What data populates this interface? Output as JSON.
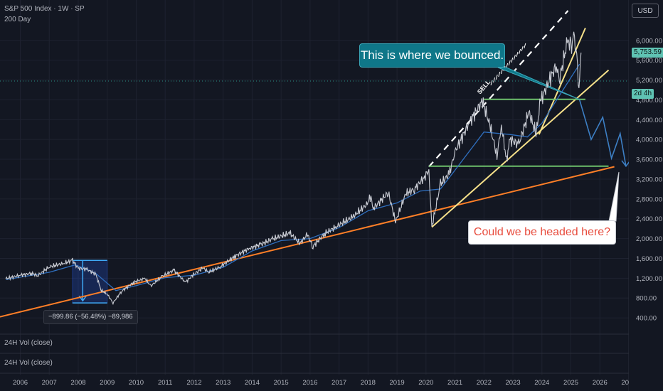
{
  "header": {
    "symbol_line": "S&P 500 Index · 1W · SP",
    "indicator_label": "200 Day"
  },
  "currency_button": "USD",
  "price_tags": {
    "current_price": "5,753.59",
    "countdown": "2d 4h"
  },
  "volume_panes": [
    "24H Vol (close)",
    "24H Vol (close)"
  ],
  "annotations": {
    "bounce_callout": "This is where we bounced.",
    "headed_callout": "Could we be headed here?",
    "sell_label": "SELL",
    "drawdown_label": "−899.86 (−56.48%) −89,986"
  },
  "colors": {
    "background": "#131722",
    "price_line": "#c8cbd3",
    "ma_line": "#2f6fbf",
    "support_orange": "#ff7f27",
    "trend_yellow": "#f7e18a",
    "level_green": "#6dbf6b",
    "projection_blue": "#3d7fc4",
    "callout_teal": "#0f7789",
    "price_tag_green": "#5fc3b3"
  },
  "chart_data": {
    "type": "line",
    "title": "S&P 500 Index · 1W · SP",
    "x_ticks": [
      "2006",
      "2007",
      "2008",
      "2009",
      "2010",
      "2011",
      "2012",
      "2013",
      "2014",
      "2015",
      "2016",
      "2017",
      "2018",
      "2019",
      "2020",
      "2021",
      "2022",
      "2023",
      "2024",
      "2025",
      "2026",
      "20"
    ],
    "y_ticks": [
      "6,000.00",
      "5,600.00",
      "5,200.00",
      "4,800.00",
      "4,400.00",
      "4,000.00",
      "3,600.00",
      "3,200.00",
      "2,800.00",
      "2,400.00",
      "2,000.00",
      "1,600.00",
      "1,200.00",
      "800.00",
      "400.00"
    ],
    "series": [
      {
        "values": [
          [
            2005.5,
            1190
          ],
          [
            2006.0,
            1260
          ],
          [
            2006.4,
            1300
          ],
          [
            2006.6,
            1250
          ],
          [
            2007.0,
            1430
          ],
          [
            2007.5,
            1500
          ],
          [
            2007.8,
            1560
          ],
          [
            2008.0,
            1400
          ],
          [
            2008.3,
            1380
          ],
          [
            2008.6,
            1280
          ],
          [
            2008.8,
            950
          ],
          [
            2009.0,
            880
          ],
          [
            2009.2,
            700
          ],
          [
            2009.5,
            940
          ],
          [
            2009.9,
            1110
          ],
          [
            2010.3,
            1200
          ],
          [
            2010.5,
            1040
          ],
          [
            2010.9,
            1240
          ],
          [
            2011.3,
            1360
          ],
          [
            2011.7,
            1120
          ],
          [
            2011.95,
            1260
          ],
          [
            2012.3,
            1410
          ],
          [
            2012.5,
            1320
          ],
          [
            2012.9,
            1430
          ],
          [
            2013.4,
            1640
          ],
          [
            2013.9,
            1800
          ],
          [
            2014.3,
            1880
          ],
          [
            2014.7,
            1990
          ],
          [
            2015.3,
            2110
          ],
          [
            2015.65,
            1900
          ],
          [
            2015.9,
            2080
          ],
          [
            2016.1,
            1840
          ],
          [
            2016.5,
            2100
          ],
          [
            2016.9,
            2240
          ],
          [
            2017.5,
            2450
          ],
          [
            2017.95,
            2690
          ],
          [
            2018.1,
            2860
          ],
          [
            2018.15,
            2590
          ],
          [
            2018.7,
            2930
          ],
          [
            2018.95,
            2340
          ],
          [
            2019.3,
            2900
          ],
          [
            2019.6,
            3000
          ],
          [
            2019.95,
            3240
          ],
          [
            2020.1,
            3390
          ],
          [
            2020.2,
            2230
          ],
          [
            2020.5,
            3100
          ],
          [
            2020.8,
            3300
          ],
          [
            2021.0,
            3750
          ],
          [
            2021.5,
            4350
          ],
          [
            2021.95,
            4780
          ],
          [
            2022.2,
            4300
          ],
          [
            2022.45,
            3670
          ],
          [
            2022.6,
            4290
          ],
          [
            2022.78,
            3580
          ],
          [
            2022.9,
            4000
          ],
          [
            2023.2,
            3900
          ],
          [
            2023.55,
            4550
          ],
          [
            2023.8,
            4120
          ],
          [
            2023.95,
            4770
          ],
          [
            2024.3,
            5250
          ],
          [
            2024.5,
            5500
          ],
          [
            2024.6,
            5180
          ],
          [
            2024.9,
            6050
          ],
          [
            2025.0,
            5800
          ],
          [
            2025.1,
            6140
          ],
          [
            2025.2,
            5680
          ],
          [
            2025.28,
            4980
          ],
          [
            2025.35,
            5753.59
          ]
        ]
      },
      {
        "name": "200 Day",
        "values": [
          [
            2005.5,
            1170
          ],
          [
            2007.0,
            1320
          ],
          [
            2007.9,
            1470
          ],
          [
            2008.6,
            1300
          ],
          [
            2009.3,
            950
          ],
          [
            2010.0,
            1050
          ],
          [
            2011.0,
            1210
          ],
          [
            2012.0,
            1260
          ],
          [
            2013.0,
            1420
          ],
          [
            2014.0,
            1750
          ],
          [
            2015.0,
            1960
          ],
          [
            2016.0,
            2000
          ],
          [
            2017.0,
            2220
          ],
          [
            2018.0,
            2560
          ],
          [
            2019.0,
            2720
          ],
          [
            2019.8,
            2960
          ],
          [
            2020.5,
            3000
          ],
          [
            2021.0,
            3380
          ],
          [
            2022.0,
            4150
          ],
          [
            2022.9,
            4100
          ],
          [
            2023.5,
            4050
          ],
          [
            2024.0,
            4330
          ],
          [
            2025.0,
            5250
          ],
          [
            2025.3,
            5520
          ]
        ]
      }
    ],
    "overlays": {
      "long_term_support": [
        [
          2005.3,
          420
        ],
        [
          2026.5,
          3450
        ]
      ],
      "upper_channel_dashed": [
        [
          2020.1,
          3450
        ],
        [
          2024.9,
          6600
        ]
      ],
      "covid_uptrend": [
        [
          2020.2,
          2230
        ],
        [
          2026.3,
          5400
        ]
      ],
      "steep_uptrend": [
        [
          2023.9,
          4100
        ],
        [
          2025.5,
          6250
        ]
      ],
      "resistance_level": [
        [
          2022.0,
          4810
        ],
        [
          2025.5,
          4810
        ]
      ],
      "target_level": [
        [
          2020.1,
          3460
        ],
        [
          2026.3,
          3460
        ]
      ],
      "projection_path": [
        [
          2025.3,
          4800
        ],
        [
          2025.7,
          4000
        ],
        [
          2026.1,
          4450
        ],
        [
          2026.4,
          3620
        ],
        [
          2026.7,
          4120
        ],
        [
          2026.9,
          3460
        ]
      ],
      "drawdown_box": [
        [
          2007.8,
          1560
        ],
        [
          2009.0,
          700
        ]
      ]
    },
    "ylim": [
      100,
      6700
    ],
    "xlim": [
      2005.3,
      2027.0
    ],
    "xlabel": "",
    "ylabel": "",
    "grid": true
  }
}
